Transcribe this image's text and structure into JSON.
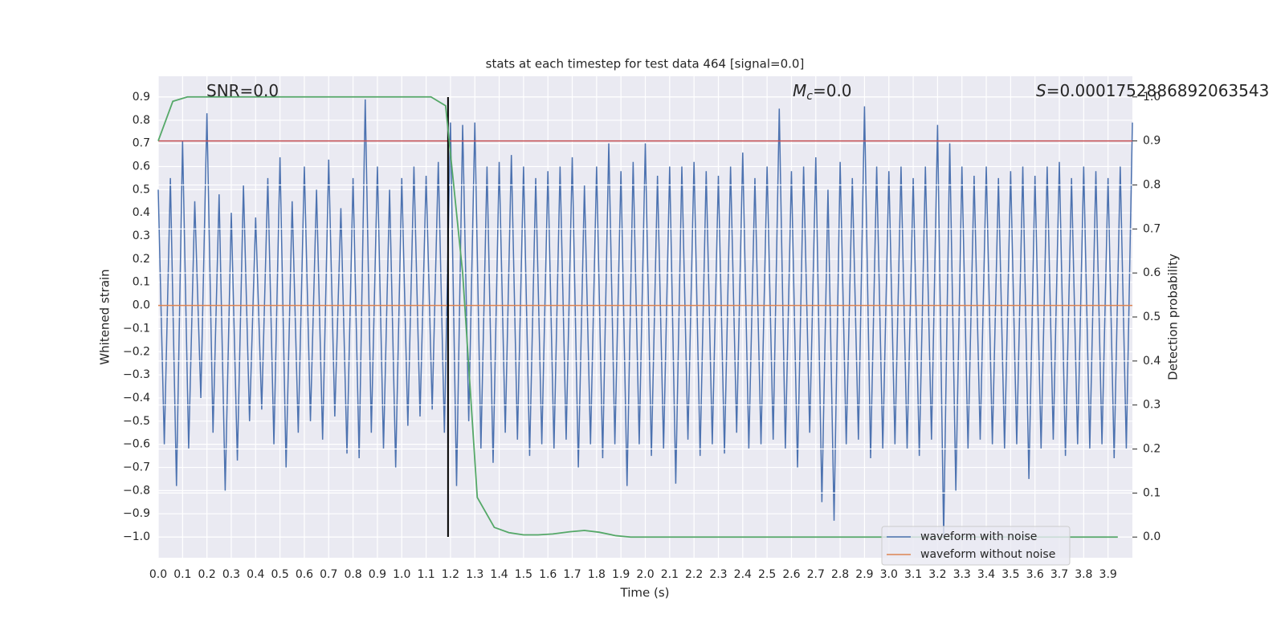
{
  "chart_data": {
    "type": "line",
    "title": "stats at each timestep for test data 464 [signal=0.0]",
    "xlabel": "Time (s)",
    "ylabel": "Whitened strain",
    "y2label": "Detection probability",
    "annotations": [
      {
        "text": "SNR=0.0"
      },
      {
        "symbol": "M",
        "subscript": "c",
        "text": "=0.0"
      },
      {
        "symbol": "S",
        "text": "=0.0001752886892063543"
      }
    ],
    "xlim": [
      0,
      4.0
    ],
    "ylim": [
      -1.09,
      0.99
    ],
    "y2lim": [
      -0.047,
      1.047
    ],
    "grid": true,
    "legend": "lower right",
    "xticks": [
      {
        "value": 0.0,
        "label": "0.0"
      },
      {
        "value": 0.1,
        "label": "0.1"
      },
      {
        "value": 0.2,
        "label": "0.2"
      },
      {
        "value": 0.3,
        "label": "0.3"
      },
      {
        "value": 0.4,
        "label": "0.4"
      },
      {
        "value": 0.5,
        "label": "0.5"
      },
      {
        "value": 0.6,
        "label": "0.6"
      },
      {
        "value": 0.7,
        "label": "0.7"
      },
      {
        "value": 0.8,
        "label": "0.8"
      },
      {
        "value": 0.9,
        "label": "0.9"
      },
      {
        "value": 1.0,
        "label": "1.0"
      },
      {
        "value": 1.1,
        "label": "1.1"
      },
      {
        "value": 1.2,
        "label": "1.2"
      },
      {
        "value": 1.3,
        "label": "1.3"
      },
      {
        "value": 1.4,
        "label": "1.4"
      },
      {
        "value": 1.5,
        "label": "1.5"
      },
      {
        "value": 1.6,
        "label": "1.6"
      },
      {
        "value": 1.7,
        "label": "1.7"
      },
      {
        "value": 1.8,
        "label": "1.8"
      },
      {
        "value": 1.9,
        "label": "1.9"
      },
      {
        "value": 2.0,
        "label": "2.0"
      },
      {
        "value": 2.1,
        "label": "2.1"
      },
      {
        "value": 2.2,
        "label": "2.2"
      },
      {
        "value": 2.3,
        "label": "2.3"
      },
      {
        "value": 2.4,
        "label": "2.4"
      },
      {
        "value": 2.5,
        "label": "2.5"
      },
      {
        "value": 2.6,
        "label": "2.6"
      },
      {
        "value": 2.7,
        "label": "2.7"
      },
      {
        "value": 2.8,
        "label": "2.8"
      },
      {
        "value": 2.9,
        "label": "2.9"
      },
      {
        "value": 3.0,
        "label": "3.0"
      },
      {
        "value": 3.1,
        "label": "3.1"
      },
      {
        "value": 3.2,
        "label": "3.2"
      },
      {
        "value": 3.3,
        "label": "3.3"
      },
      {
        "value": 3.4,
        "label": "3.4"
      },
      {
        "value": 3.5,
        "label": "3.5"
      },
      {
        "value": 3.6,
        "label": "3.6"
      },
      {
        "value": 3.7,
        "label": "3.7"
      },
      {
        "value": 3.8,
        "label": "3.8"
      },
      {
        "value": 3.9,
        "label": "3.9"
      }
    ],
    "yticks": [
      {
        "value": -1.0,
        "label": "−1.0"
      },
      {
        "value": -0.9,
        "label": "−0.9"
      },
      {
        "value": -0.8,
        "label": "−0.8"
      },
      {
        "value": -0.7,
        "label": "−0.7"
      },
      {
        "value": -0.6,
        "label": "−0.6"
      },
      {
        "value": -0.5,
        "label": "−0.5"
      },
      {
        "value": -0.4,
        "label": "−0.4"
      },
      {
        "value": -0.3,
        "label": "−0.3"
      },
      {
        "value": -0.2,
        "label": "−0.2"
      },
      {
        "value": -0.1,
        "label": "−0.1"
      },
      {
        "value": 0.0,
        "label": "0.0"
      },
      {
        "value": 0.1,
        "label": "0.1"
      },
      {
        "value": 0.2,
        "label": "0.2"
      },
      {
        "value": 0.3,
        "label": "0.3"
      },
      {
        "value": 0.4,
        "label": "0.4"
      },
      {
        "value": 0.5,
        "label": "0.5"
      },
      {
        "value": 0.6,
        "label": "0.6"
      },
      {
        "value": 0.7,
        "label": "0.7"
      },
      {
        "value": 0.8,
        "label": "0.8"
      },
      {
        "value": 0.9,
        "label": "0.9"
      }
    ],
    "y2ticks": [
      {
        "value": 0.0,
        "label": "0.0"
      },
      {
        "value": 0.1,
        "label": "0.1"
      },
      {
        "value": 0.2,
        "label": "0.2"
      },
      {
        "value": 0.3,
        "label": "0.3"
      },
      {
        "value": 0.4,
        "label": "0.4"
      },
      {
        "value": 0.5,
        "label": "0.5"
      },
      {
        "value": 0.6,
        "label": "0.6"
      },
      {
        "value": 0.7,
        "label": "0.7"
      },
      {
        "value": 0.8,
        "label": "0.8"
      },
      {
        "value": 0.9,
        "label": "0.9"
      },
      {
        "value": 1.0,
        "label": "1.0"
      }
    ],
    "series": [
      {
        "name": "waveform with noise",
        "color": "#4c72b0",
        "x": [
          0,
          0.025,
          0.05,
          0.075,
          0.1,
          0.125,
          0.15,
          0.175,
          0.2,
          0.225,
          0.25,
          0.275,
          0.3,
          0.325,
          0.35,
          0.375,
          0.4,
          0.425,
          0.45,
          0.475,
          0.5,
          0.525,
          0.55,
          0.575,
          0.6,
          0.625,
          0.65,
          0.675,
          0.7,
          0.725,
          0.75,
          0.775,
          0.8,
          0.825,
          0.85,
          0.875,
          0.9,
          0.925,
          0.95,
          0.975,
          1.0,
          1.025,
          1.05,
          1.075,
          1.1,
          1.125,
          1.15,
          1.175,
          1.2,
          1.225,
          1.25,
          1.275,
          1.3,
          1.325,
          1.35,
          1.375,
          1.4,
          1.425,
          1.45,
          1.475,
          1.5,
          1.525,
          1.55,
          1.575,
          1.6,
          1.625,
          1.65,
          1.675,
          1.7,
          1.725,
          1.75,
          1.775,
          1.8,
          1.825,
          1.85,
          1.875,
          1.9,
          1.925,
          1.95,
          1.975,
          2.0,
          2.025,
          2.05,
          2.075,
          2.1,
          2.125,
          2.15,
          2.175,
          2.2,
          2.225,
          2.25,
          2.275,
          2.3,
          2.325,
          2.35,
          2.375,
          2.4,
          2.425,
          2.45,
          2.475,
          2.5,
          2.525,
          2.55,
          2.575,
          2.6,
          2.625,
          2.65,
          2.675,
          2.7,
          2.725,
          2.75,
          2.775,
          2.8,
          2.825,
          2.85,
          2.875,
          2.9,
          2.925,
          2.95,
          2.975,
          3.0,
          3.025,
          3.05,
          3.075,
          3.1,
          3.125,
          3.15,
          3.175,
          3.2,
          3.225,
          3.25,
          3.275,
          3.3,
          3.325,
          3.35,
          3.375,
          3.4,
          3.425,
          3.45,
          3.475,
          3.5,
          3.525,
          3.55,
          3.575,
          3.6,
          3.625,
          3.65,
          3.675,
          3.7,
          3.725,
          3.75,
          3.775,
          3.8,
          3.825,
          3.85,
          3.875,
          3.9,
          3.925,
          3.95,
          3.975,
          4.0
        ],
        "values": [
          0.5,
          -0.6,
          0.55,
          -0.78,
          0.71,
          -0.62,
          0.45,
          -0.4,
          0.83,
          -0.55,
          0.48,
          -0.8,
          0.4,
          -0.67,
          0.52,
          -0.5,
          0.38,
          -0.45,
          0.55,
          -0.6,
          0.64,
          -0.7,
          0.45,
          -0.55,
          0.6,
          -0.5,
          0.5,
          -0.58,
          0.63,
          -0.48,
          0.42,
          -0.64,
          0.55,
          -0.66,
          0.89,
          -0.55,
          0.6,
          -0.62,
          0.5,
          -0.7,
          0.55,
          -0.52,
          0.6,
          -0.48,
          0.56,
          -0.45,
          0.62,
          -0.55,
          0.79,
          -0.78,
          0.78,
          -0.5,
          0.79,
          -0.62,
          0.6,
          -0.68,
          0.62,
          -0.55,
          0.65,
          -0.58,
          0.6,
          -0.65,
          0.55,
          -0.6,
          0.58,
          -0.62,
          0.6,
          -0.58,
          0.64,
          -0.7,
          0.52,
          -0.6,
          0.6,
          -0.66,
          0.7,
          -0.6,
          0.58,
          -0.78,
          0.62,
          -0.6,
          0.7,
          -0.65,
          0.56,
          -0.62,
          0.6,
          -0.77,
          0.6,
          -0.58,
          0.62,
          -0.65,
          0.58,
          -0.6,
          0.56,
          -0.64,
          0.6,
          -0.55,
          0.66,
          -0.62,
          0.55,
          -0.6,
          0.6,
          -0.58,
          0.85,
          -0.62,
          0.58,
          -0.7,
          0.6,
          -0.55,
          0.64,
          -0.85,
          0.5,
          -0.93,
          0.62,
          -0.6,
          0.55,
          -0.58,
          0.86,
          -0.66,
          0.6,
          -0.62,
          0.58,
          -0.6,
          0.6,
          -0.62,
          0.55,
          -0.65,
          0.6,
          -0.58,
          0.78,
          -1.0,
          0.7,
          -0.8,
          0.6,
          -0.62,
          0.56,
          -0.58,
          0.6,
          -0.6,
          0.55,
          -0.62,
          0.58,
          -0.6,
          0.6,
          -0.75,
          0.56,
          -0.62,
          0.6,
          -0.58,
          0.62,
          -0.65,
          0.55,
          -0.6,
          0.6,
          -0.62,
          0.58,
          -0.6,
          0.55,
          -0.66,
          0.6,
          -0.62,
          0.79
        ]
      },
      {
        "name": "waveform without noise",
        "color": "#dd8452",
        "x": [
          0,
          4.0
        ],
        "values": [
          0,
          0
        ]
      }
    ],
    "probability": {
      "color": "#55a868",
      "axis": "y2",
      "x": [
        0,
        0.06,
        0.12,
        1.12,
        1.18,
        1.25,
        1.31,
        1.38,
        1.44,
        1.5,
        1.56,
        1.62,
        1.69,
        1.75,
        1.81,
        1.88,
        1.94,
        3.94
      ],
      "values": [
        0.9,
        0.99,
        1.0,
        1.0,
        0.98,
        0.6,
        0.09,
        0.022,
        0.01,
        0.005,
        0.005,
        0.007,
        0.012,
        0.015,
        0.011,
        0.003,
        0.0,
        0.0
      ]
    },
    "threshold": {
      "color": "#c44e52",
      "axis": "y2",
      "x": [
        0,
        4.0
      ],
      "values": [
        0.9,
        0.9
      ]
    },
    "marker_line": {
      "color": "#000000",
      "x": 1.19,
      "values": [
        -1.0,
        0.9
      ]
    }
  }
}
